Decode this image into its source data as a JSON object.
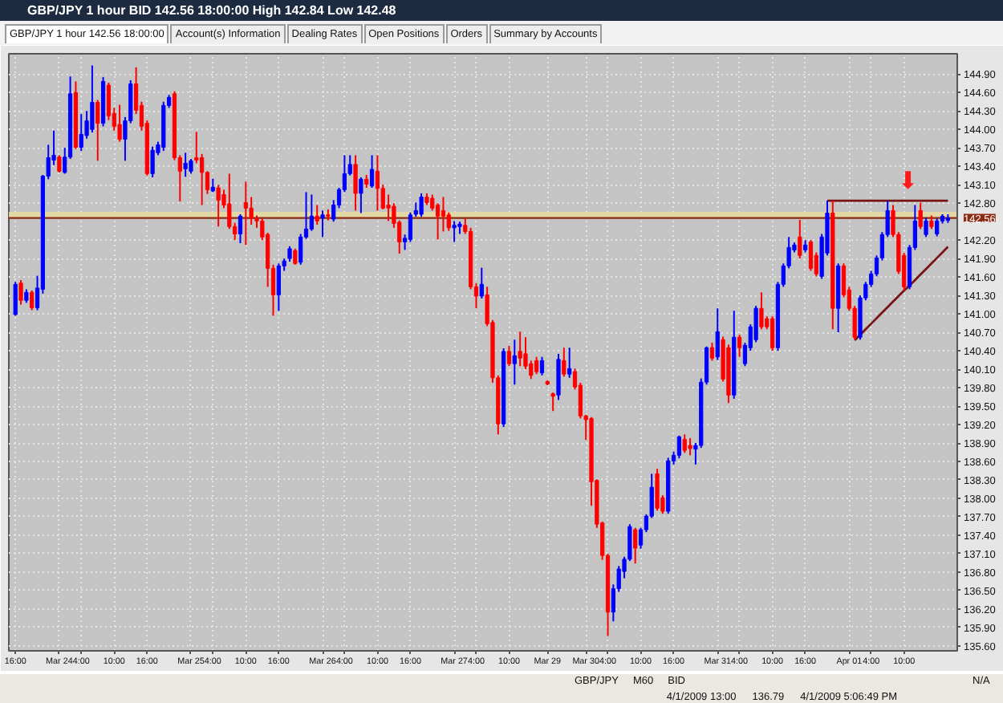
{
  "chart_data": {
    "type": "candlestick",
    "title": "GBP/JPY 1 hour BID 142.56 18:00:00 High 142.84 Low 142.48",
    "subtitle": "GBP/JPY 1 hour 142.56 18:00:00",
    "annotations": [
      "Account(s) Information",
      "Dealing Rates",
      "Open Positions",
      "Orders",
      "Summary by Accounts",
      "GBP/JPY",
      "M60",
      "BID",
      "N/A",
      "4/1/2009 13:00",
      "136.79",
      "4/1/2009 5:06:49 PM",
      "⬇"
    ],
    "categories": [
      "16:00",
      null,
      null,
      null,
      null,
      null,
      null,
      null,
      "Mar 24",
      null,
      null,
      null,
      "4:00",
      null,
      null,
      null,
      null,
      null,
      "10:00",
      null,
      null,
      null,
      null,
      null,
      "16:00",
      null,
      null,
      null,
      null,
      null,
      null,
      null,
      "Mar 25",
      null,
      null,
      null,
      "4:00",
      null,
      null,
      null,
      null,
      null,
      "10:00",
      null,
      null,
      null,
      null,
      null,
      "16:00",
      null,
      null,
      null,
      null,
      null,
      null,
      null,
      "Mar 26",
      null,
      null,
      null,
      "4:00",
      null,
      null,
      null,
      null,
      null,
      "10:00",
      null,
      null,
      null,
      null,
      null,
      "16:00",
      null,
      null,
      null,
      null,
      null,
      null,
      null,
      "Mar 27",
      null,
      null,
      null,
      "4:00",
      null,
      null,
      null,
      null,
      null,
      "10:00",
      null,
      null,
      null,
      null,
      null,
      null,
      "Mar 29",
      null,
      null,
      null,
      null,
      null,
      null,
      "Mar 30",
      null,
      null,
      null,
      "4:00",
      null,
      null,
      null,
      null,
      null,
      "10:00",
      null,
      null,
      null,
      null,
      null,
      "16:00",
      null,
      null,
      null,
      null,
      null,
      null,
      null,
      "Mar 31",
      null,
      null,
      null,
      "4:00",
      null,
      null,
      null,
      null,
      null,
      "10:00",
      null,
      null,
      null,
      null,
      null,
      "16:00",
      null,
      null,
      null,
      null,
      null,
      null,
      null,
      "Apr 01",
      null,
      null,
      null,
      "4:00",
      null,
      null,
      null,
      null,
      null,
      "10:00",
      null,
      null,
      null,
      null,
      null,
      null,
      null,
      null
    ],
    "ohlc": [
      [
        140.99,
        141.52,
        140.97,
        141.48
      ],
      [
        141.5,
        141.55,
        141.15,
        141.22
      ],
      [
        141.22,
        141.4,
        141.18,
        141.35
      ],
      [
        141.35,
        141.38,
        141.06,
        141.1
      ],
      [
        141.1,
        141.62,
        141.06,
        141.42
      ],
      [
        141.4,
        143.26,
        141.33,
        143.24
      ],
      [
        143.24,
        143.75,
        143.19,
        143.54
      ],
      [
        143.5,
        143.98,
        143.42,
        143.58
      ],
      [
        143.55,
        143.58,
        143.3,
        143.32
      ],
      [
        143.3,
        143.7,
        143.28,
        143.55
      ],
      [
        143.55,
        144.86,
        143.52,
        144.58
      ],
      [
        144.6,
        144.78,
        143.68,
        143.71
      ],
      [
        143.71,
        144.25,
        143.65,
        143.92
      ],
      [
        143.9,
        144.3,
        143.85,
        144.14
      ],
      [
        144.0,
        145.04,
        143.95,
        144.44
      ],
      [
        144.44,
        144.48,
        143.49,
        144.1
      ],
      [
        144.1,
        144.85,
        144.05,
        144.78
      ],
      [
        144.72,
        144.76,
        144.15,
        144.22
      ],
      [
        144.26,
        144.35,
        143.98,
        144.05
      ],
      [
        144.08,
        144.4,
        143.8,
        143.84
      ],
      [
        143.84,
        144.2,
        143.49,
        144.14
      ],
      [
        144.14,
        144.8,
        144.1,
        144.74
      ],
      [
        144.74,
        145.01,
        144.25,
        144.31
      ],
      [
        144.39,
        144.45,
        143.98,
        144.05
      ],
      [
        144.1,
        144.15,
        143.25,
        143.28
      ],
      [
        143.28,
        143.72,
        143.22,
        143.66
      ],
      [
        143.62,
        143.8,
        143.58,
        143.75
      ],
      [
        143.71,
        144.45,
        143.65,
        144.39
      ],
      [
        144.39,
        144.56,
        144.35,
        144.52
      ],
      [
        144.58,
        144.62,
        143.5,
        143.54
      ],
      [
        143.54,
        143.58,
        142.83,
        143.32
      ],
      [
        143.36,
        143.62,
        143.23,
        143.45
      ],
      [
        143.32,
        143.52,
        143.28,
        143.49
      ],
      [
        143.54,
        143.96,
        143.45,
        143.5
      ],
      [
        143.54,
        143.6,
        142.77,
        143.3
      ],
      [
        143.3,
        143.32,
        142.95,
        143.02
      ],
      [
        143.0,
        143.2,
        142.98,
        143.06
      ],
      [
        143.05,
        143.1,
        142.42,
        142.85
      ],
      [
        142.94,
        143.02,
        142.72,
        142.77
      ],
      [
        142.79,
        143.28,
        142.38,
        142.42
      ],
      [
        142.42,
        142.48,
        142.2,
        142.3
      ],
      [
        142.3,
        142.62,
        142.15,
        142.59
      ],
      [
        142.81,
        143.15,
        142.12,
        142.72
      ],
      [
        142.72,
        142.9,
        142.45,
        142.55
      ],
      [
        142.55,
        142.6,
        142.4,
        142.51
      ],
      [
        142.51,
        142.55,
        142.2,
        142.25
      ],
      [
        142.29,
        142.32,
        141.44,
        141.74
      ],
      [
        141.74,
        141.8,
        140.97,
        141.31
      ],
      [
        141.31,
        141.82,
        141.05,
        141.78
      ],
      [
        141.78,
        141.9,
        141.7,
        141.86
      ],
      [
        141.9,
        142.1,
        141.85,
        142.06
      ],
      [
        142.03,
        142.06,
        141.8,
        141.82
      ],
      [
        141.84,
        142.3,
        141.8,
        142.25
      ],
      [
        142.25,
        142.98,
        142.22,
        142.38
      ],
      [
        142.38,
        142.94,
        142.35,
        142.59
      ],
      [
        142.59,
        142.77,
        142.45,
        142.51
      ],
      [
        142.56,
        142.68,
        142.25,
        142.61
      ],
      [
        142.61,
        142.7,
        142.52,
        142.59
      ],
      [
        142.54,
        142.85,
        142.5,
        142.77
      ],
      [
        142.77,
        143.05,
        142.72,
        143.02
      ],
      [
        143.02,
        143.58,
        142.98,
        143.28
      ],
      [
        143.28,
        143.58,
        143.25,
        143.43
      ],
      [
        143.43,
        143.58,
        142.68,
        142.96
      ],
      [
        142.96,
        143.22,
        142.64,
        143.19
      ],
      [
        143.19,
        143.26,
        143.05,
        143.11
      ],
      [
        143.08,
        143.58,
        143.05,
        143.35
      ],
      [
        143.32,
        143.58,
        142.68,
        143.04
      ],
      [
        143.04,
        143.1,
        142.7,
        142.72
      ],
      [
        142.77,
        142.94,
        142.51,
        142.72
      ],
      [
        142.75,
        142.8,
        142.4,
        142.47
      ],
      [
        142.49,
        142.52,
        141.98,
        142.17
      ],
      [
        142.17,
        142.29,
        142.04,
        142.23
      ],
      [
        142.21,
        142.65,
        142.17,
        142.61
      ],
      [
        142.62,
        142.81,
        142.58,
        142.68
      ],
      [
        142.62,
        142.96,
        142.58,
        142.9
      ],
      [
        142.9,
        142.96,
        142.77,
        142.81
      ],
      [
        142.88,
        142.94,
        142.68,
        142.72
      ],
      [
        142.77,
        142.8,
        142.21,
        142.59
      ],
      [
        142.68,
        142.9,
        142.34,
        142.59
      ],
      [
        142.61,
        142.65,
        142.35,
        142.4
      ],
      [
        142.4,
        142.51,
        142.17,
        142.44
      ],
      [
        142.42,
        142.5,
        142.3,
        142.46
      ],
      [
        142.44,
        142.55,
        142.3,
        142.34
      ],
      [
        142.34,
        142.4,
        141.4,
        141.44
      ],
      [
        141.44,
        141.5,
        141.09,
        141.29
      ],
      [
        141.29,
        141.75,
        141.25,
        141.48
      ],
      [
        141.31,
        141.44,
        140.8,
        140.84
      ],
      [
        140.86,
        140.9,
        139.88,
        139.96
      ],
      [
        139.96,
        140.0,
        139.04,
        139.21
      ],
      [
        139.21,
        140.44,
        139.16,
        140.39
      ],
      [
        140.39,
        140.48,
        140.15,
        140.19
      ],
      [
        140.19,
        140.58,
        139.85,
        140.32
      ],
      [
        140.39,
        140.71,
        140.15,
        140.28
      ],
      [
        140.35,
        140.62,
        140.1,
        140.15
      ],
      [
        140.19,
        140.24,
        139.94,
        140.0
      ],
      [
        140.24,
        140.3,
        140.02,
        140.06
      ],
      [
        140.04,
        140.3,
        140.0,
        140.24
      ],
      [
        139.9,
        139.92,
        139.84,
        139.86
      ],
      [
        139.7,
        139.72,
        139.42,
        139.66
      ],
      [
        139.68,
        140.35,
        139.6,
        140.26
      ],
      [
        140.24,
        140.45,
        139.98,
        140.02
      ],
      [
        140.02,
        140.45,
        139.96,
        140.11
      ],
      [
        140.06,
        140.11,
        139.77,
        139.81
      ],
      [
        139.84,
        139.88,
        139.3,
        139.34
      ],
      [
        139.34,
        139.36,
        138.95,
        139.28
      ],
      [
        139.3,
        139.32,
        137.88,
        138.27
      ],
      [
        138.29,
        138.31,
        137.52,
        137.58
      ],
      [
        137.6,
        137.62,
        137.0,
        137.07
      ],
      [
        137.07,
        137.1,
        135.76,
        136.15
      ],
      [
        136.15,
        136.6,
        136.0,
        136.53
      ],
      [
        136.53,
        136.9,
        136.48,
        136.85
      ],
      [
        136.81,
        137.05,
        136.7,
        137.01
      ],
      [
        137.01,
        137.58,
        136.98,
        137.54
      ],
      [
        137.49,
        137.52,
        136.94,
        137.19
      ],
      [
        137.24,
        137.52,
        137.18,
        137.49
      ],
      [
        137.49,
        137.74,
        137.45,
        137.71
      ],
      [
        137.71,
        138.4,
        137.68,
        138.18
      ],
      [
        138.4,
        138.48,
        137.8,
        137.84
      ],
      [
        138.01,
        138.05,
        137.75,
        137.79
      ],
      [
        137.79,
        138.66,
        137.75,
        138.61
      ],
      [
        138.61,
        138.76,
        138.55,
        138.7
      ],
      [
        138.7,
        139.02,
        138.65,
        139.0
      ],
      [
        138.96,
        139.04,
        138.74,
        138.78
      ],
      [
        138.86,
        138.98,
        138.7,
        138.81
      ],
      [
        138.8,
        138.9,
        138.55,
        138.86
      ],
      [
        138.86,
        139.95,
        138.82,
        139.89
      ],
      [
        139.89,
        140.47,
        139.85,
        140.45
      ],
      [
        140.45,
        140.53,
        140.24,
        140.28
      ],
      [
        140.3,
        141.09,
        140.25,
        140.71
      ],
      [
        140.58,
        140.63,
        139.9,
        139.94
      ],
      [
        140.45,
        140.5,
        139.55,
        139.68
      ],
      [
        139.68,
        141.05,
        139.62,
        140.62
      ],
      [
        140.62,
        140.66,
        140.3,
        140.45
      ],
      [
        140.19,
        140.53,
        140.15,
        140.49
      ],
      [
        140.45,
        140.83,
        140.4,
        140.79
      ],
      [
        140.58,
        141.13,
        140.54,
        141.09
      ],
      [
        141.09,
        141.35,
        140.75,
        140.79
      ],
      [
        140.92,
        140.96,
        140.75,
        140.79
      ],
      [
        140.92,
        140.96,
        140.4,
        140.45
      ],
      [
        140.45,
        141.52,
        140.4,
        141.48
      ],
      [
        141.48,
        141.82,
        141.44,
        141.78
      ],
      [
        141.78,
        142.25,
        141.74,
        142.08
      ],
      [
        142.04,
        142.16,
        142.0,
        142.12
      ],
      [
        142.25,
        142.53,
        141.9,
        141.95
      ],
      [
        142.04,
        142.2,
        142.0,
        142.12
      ],
      [
        142.17,
        142.2,
        141.7,
        141.74
      ],
      [
        141.95,
        142.0,
        141.61,
        141.65
      ],
      [
        141.61,
        142.3,
        141.57,
        142.25
      ],
      [
        141.99,
        142.84,
        141.95,
        142.64
      ],
      [
        142.64,
        142.84,
        140.75,
        141.09
      ],
      [
        141.09,
        141.82,
        140.7,
        141.78
      ],
      [
        141.78,
        141.82,
        141.27,
        141.31
      ],
      [
        141.39,
        141.44,
        141.05,
        141.09
      ],
      [
        141.09,
        141.13,
        140.58,
        140.62
      ],
      [
        140.62,
        141.3,
        140.58,
        141.26
      ],
      [
        141.26,
        141.52,
        141.22,
        141.48
      ],
      [
        141.48,
        141.7,
        141.44,
        141.65
      ],
      [
        141.65,
        141.95,
        141.61,
        141.91
      ],
      [
        141.91,
        142.33,
        141.87,
        142.29
      ],
      [
        142.29,
        142.84,
        142.25,
        142.68
      ],
      [
        142.68,
        142.77,
        142.25,
        142.29
      ],
      [
        142.29,
        142.33,
        141.65,
        141.69
      ],
      [
        141.95,
        141.99,
        141.38,
        141.44
      ],
      [
        141.44,
        142.12,
        141.4,
        142.08
      ],
      [
        142.08,
        142.77,
        142.04,
        142.51
      ],
      [
        142.68,
        142.81,
        142.38,
        142.42
      ],
      [
        142.29,
        142.56,
        142.25,
        142.51
      ],
      [
        142.51,
        142.6,
        142.38,
        142.42
      ],
      [
        142.3,
        142.55,
        142.26,
        142.51
      ],
      [
        142.51,
        142.62,
        142.47,
        142.59
      ],
      [
        142.52,
        142.62,
        142.48,
        142.56
      ]
    ],
    "colors": [
      "#0000ff",
      "#ff0000",
      "#0000ff",
      "#ff0000",
      "#0000ff",
      "#0000ff",
      "#0000ff",
      "#0000ff",
      "#ff0000",
      "#0000ff",
      "#0000ff",
      "#ff0000",
      "#0000ff",
      "#0000ff",
      "#0000ff",
      "#ff0000",
      "#0000ff",
      "#ff0000",
      "#ff0000",
      "#ff0000",
      "#0000ff",
      "#0000ff",
      "#ff0000",
      "#ff0000",
      "#ff0000",
      "#0000ff",
      "#0000ff",
      "#0000ff",
      "#0000ff",
      "#ff0000",
      "#ff0000",
      "#0000ff",
      "#0000ff",
      "#ff0000",
      "#ff0000",
      "#ff0000",
      "#0000ff",
      "#ff0000",
      "#ff0000",
      "#ff0000",
      "#ff0000",
      "#0000ff",
      "#ff0000",
      "#ff0000",
      "#ff0000",
      "#ff0000",
      "#ff0000",
      "#ff0000",
      "#0000ff",
      "#0000ff",
      "#0000ff",
      "#ff0000",
      "#0000ff",
      "#0000ff",
      "#0000ff",
      "#ff0000",
      "#0000ff",
      "#ff0000",
      "#0000ff",
      "#0000ff",
      "#0000ff",
      "#0000ff",
      "#ff0000",
      "#0000ff",
      "#ff0000",
      "#0000ff",
      "#ff0000",
      "#ff0000",
      "#ff0000",
      "#ff0000",
      "#ff0000",
      "#0000ff",
      "#0000ff",
      "#0000ff",
      "#0000ff",
      "#ff0000",
      "#ff0000",
      "#ff0000",
      "#ff0000",
      "#ff0000",
      "#0000ff",
      "#0000ff",
      "#ff0000",
      "#ff0000",
      "#ff0000",
      "#0000ff",
      "#ff0000",
      "#ff0000",
      "#ff0000",
      "#0000ff",
      "#ff0000",
      "#0000ff",
      "#ff0000",
      "#ff0000",
      "#ff0000",
      "#ff0000",
      "#0000ff",
      "#ff0000",
      "#ff0000",
      "#0000ff",
      "#ff0000",
      "#0000ff",
      "#ff0000",
      "#ff0000",
      "#ff0000",
      "#ff0000",
      "#ff0000",
      "#ff0000",
      "#ff0000",
      "#0000ff",
      "#0000ff",
      "#0000ff",
      "#0000ff",
      "#ff0000",
      "#0000ff",
      "#0000ff",
      "#0000ff",
      "#ff0000",
      "#ff0000",
      "#0000ff",
      "#0000ff",
      "#0000ff",
      "#ff0000",
      "#ff0000",
      "#0000ff",
      "#0000ff",
      "#0000ff",
      "#ff0000",
      "#0000ff",
      "#ff0000",
      "#ff0000",
      "#0000ff",
      "#ff0000",
      "#0000ff",
      "#0000ff",
      "#0000ff",
      "#ff0000",
      "#ff0000",
      "#ff0000",
      "#0000ff",
      "#0000ff",
      "#0000ff",
      "#0000ff",
      "#ff0000",
      "#0000ff",
      "#ff0000",
      "#ff0000",
      "#0000ff",
      "#0000ff",
      "#ff0000",
      "#0000ff",
      "#ff0000",
      "#ff0000",
      "#ff0000",
      "#0000ff",
      "#0000ff",
      "#0000ff",
      "#0000ff",
      "#0000ff",
      "#0000ff",
      "#ff0000",
      "#ff0000",
      "#ff0000",
      "#0000ff",
      "#0000ff",
      "#ff0000",
      "#0000ff",
      "#ff0000",
      "#0000ff",
      "#0000ff",
      "#0000ff"
    ],
    "series": [
      {
        "type": "line",
        "color": "#7a1414",
        "values": [
          null,
          null,
          null,
          null,
          null,
          null,
          null,
          null,
          null,
          null,
          null,
          null,
          null,
          null,
          null,
          null,
          null,
          null,
          null,
          null,
          null,
          null,
          null,
          null,
          null,
          null,
          null,
          null,
          null,
          null,
          null,
          null,
          null,
          null,
          null,
          null,
          null,
          null,
          null,
          null,
          null,
          null,
          null,
          null,
          null,
          null,
          null,
          null,
          null,
          null,
          null,
          null,
          null,
          null,
          null,
          null,
          null,
          null,
          null,
          null,
          null,
          null,
          null,
          null,
          null,
          null,
          null,
          null,
          null,
          null,
          null,
          null,
          null,
          null,
          null,
          null,
          null,
          null,
          null,
          null,
          null,
          null,
          null,
          null,
          null,
          null,
          null,
          null,
          null,
          null,
          null,
          null,
          null,
          null,
          null,
          null,
          null,
          null,
          null,
          null,
          null,
          null,
          null,
          null,
          null,
          null,
          null,
          null,
          null,
          null,
          null,
          null,
          null,
          null,
          null,
          null,
          null,
          null,
          null,
          null,
          null,
          null,
          null,
          null,
          null,
          null,
          null,
          null,
          null,
          null,
          null,
          null,
          null,
          null,
          null,
          null,
          null,
          null,
          null,
          null,
          null,
          null,
          null,
          null,
          null,
          null,
          null,
          null,
          142.84,
          142.84,
          142.84,
          142.84,
          142.84,
          142.84,
          142.84,
          142.84,
          142.84,
          142.84,
          142.84,
          142.84,
          142.84,
          142.84,
          142.84,
          142.84,
          142.84,
          142.84,
          142.84,
          142.84,
          142.84,
          142.84,
          142.84
        ]
      },
      {
        "type": "line",
        "color": "#7a1414",
        "values": [
          null,
          null,
          null,
          null,
          null,
          null,
          null,
          null,
          null,
          null,
          null,
          null,
          null,
          null,
          null,
          null,
          null,
          null,
          null,
          null,
          null,
          null,
          null,
          null,
          null,
          null,
          null,
          null,
          null,
          null,
          null,
          null,
          null,
          null,
          null,
          null,
          null,
          null,
          null,
          null,
          null,
          null,
          null,
          null,
          null,
          null,
          null,
          null,
          null,
          null,
          null,
          null,
          null,
          null,
          null,
          null,
          null,
          null,
          null,
          null,
          null,
          null,
          null,
          null,
          null,
          null,
          null,
          null,
          null,
          null,
          null,
          null,
          null,
          null,
          null,
          null,
          null,
          null,
          null,
          null,
          null,
          null,
          null,
          null,
          null,
          null,
          null,
          null,
          null,
          null,
          null,
          null,
          null,
          null,
          null,
          null,
          null,
          null,
          null,
          null,
          null,
          null,
          null,
          null,
          null,
          null,
          null,
          null,
          null,
          null,
          null,
          null,
          null,
          null,
          null,
          null,
          null,
          null,
          null,
          null,
          null,
          null,
          null,
          null,
          null,
          null,
          null,
          null,
          null,
          null,
          null,
          null,
          null,
          null,
          null,
          null,
          null,
          null,
          null,
          null,
          null,
          null,
          null,
          null,
          null,
          null,
          null,
          null,
          null,
          null,
          null,
          null,
          null,
          140.57,
          140.66,
          140.75,
          140.84,
          140.93,
          141.02,
          141.11,
          141.2,
          141.29,
          141.38,
          141.46,
          141.55,
          141.64,
          141.73,
          141.82,
          141.91,
          142.0,
          142.09
        ]
      }
    ],
    "ref_lines": [
      {
        "axis": "y",
        "value": 142.56,
        "label": "142.56",
        "color": "#8b2a10"
      }
    ],
    "bands": [
      {
        "axis": "y",
        "from": 142.56,
        "to": 142.66,
        "color": "#e6dca0"
      }
    ],
    "ylim": [
      135.52,
      145.23
    ],
    "yticks": [
      {
        "value": 144.9,
        "label": "144.90"
      },
      {
        "value": 144.6,
        "label": "144.60"
      },
      {
        "value": 144.3,
        "label": "144.30"
      },
      {
        "value": 144.0,
        "label": "144.00"
      },
      {
        "value": 143.7,
        "label": "143.70"
      },
      {
        "value": 143.4,
        "label": "143.40"
      },
      {
        "value": 143.1,
        "label": "143.10"
      },
      {
        "value": 142.8,
        "label": "142.80"
      },
      {
        "value": 142.2,
        "label": "142.20"
      },
      {
        "value": 141.9,
        "label": "141.90"
      },
      {
        "value": 141.6,
        "label": "141.60"
      },
      {
        "value": 141.3,
        "label": "141.30"
      },
      {
        "value": 141.0,
        "label": "141.00"
      },
      {
        "value": 140.7,
        "label": "140.70"
      },
      {
        "value": 140.4,
        "label": "140.40"
      },
      {
        "value": 140.1,
        "label": "140.10"
      },
      {
        "value": 139.8,
        "label": "139.80"
      },
      {
        "value": 139.5,
        "label": "139.50"
      },
      {
        "value": 139.2,
        "label": "139.20"
      },
      {
        "value": 138.9,
        "label": "138.90"
      },
      {
        "value": 138.6,
        "label": "138.60"
      },
      {
        "value": 138.3,
        "label": "138.30"
      },
      {
        "value": 138.0,
        "label": "138.00"
      },
      {
        "value": 137.7,
        "label": "137.70"
      },
      {
        "value": 137.4,
        "label": "137.40"
      },
      {
        "value": 137.1,
        "label": "137.10"
      },
      {
        "value": 136.8,
        "label": "136.80"
      },
      {
        "value": 136.5,
        "label": "136.50"
      },
      {
        "value": 136.2,
        "label": "136.20"
      },
      {
        "value": 135.9,
        "label": "135.90"
      },
      {
        "value": 135.6,
        "label": "135.60"
      }
    ],
    "grid": true
  }
}
